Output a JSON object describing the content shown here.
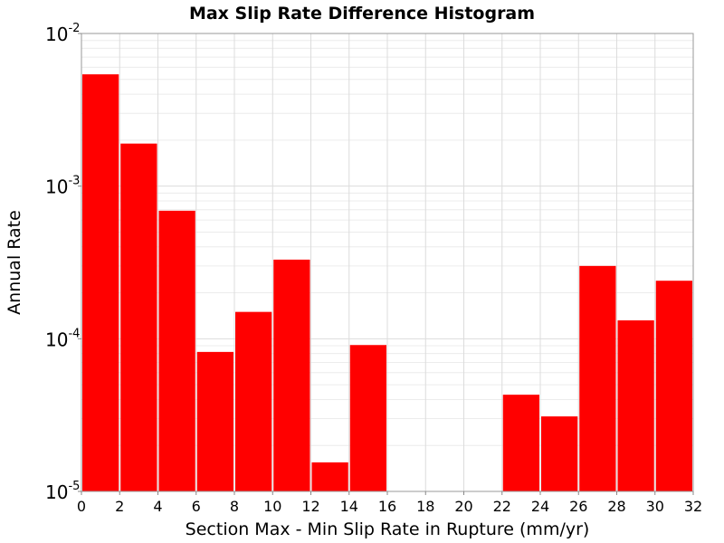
{
  "chart_data": {
    "type": "bar",
    "title": "Max Slip Rate Difference Histogram",
    "xlabel": "Section Max - Min Slip Rate in Rupture (mm/yr)",
    "ylabel": "Annual Rate",
    "xlim": [
      0,
      32
    ],
    "ylim": [
      1e-05,
      0.01
    ],
    "yscale": "log",
    "bin_width": 2,
    "grid": true,
    "bar_color": "#ff0000",
    "x_ticks": [
      "0",
      "2",
      "4",
      "6",
      "8",
      "10",
      "12",
      "14",
      "16",
      "18",
      "20",
      "22",
      "24",
      "26",
      "28",
      "30",
      "32"
    ],
    "y_ticks": [
      {
        "value": 0.01,
        "base": "10",
        "exp": "-2"
      },
      {
        "value": 0.001,
        "base": "10",
        "exp": "-3"
      },
      {
        "value": 0.0001,
        "base": "10",
        "exp": "-4"
      },
      {
        "value": 1e-05,
        "base": "10",
        "exp": "-5"
      }
    ],
    "bins": [
      {
        "x": 1,
        "value": 0.0054
      },
      {
        "x": 3,
        "value": 0.0019
      },
      {
        "x": 5,
        "value": 0.00069
      },
      {
        "x": 7,
        "value": 8.2e-05
      },
      {
        "x": 9,
        "value": 0.00015
      },
      {
        "x": 11,
        "value": 0.00033
      },
      {
        "x": 13,
        "value": 1.55e-05
      },
      {
        "x": 15,
        "value": 9.1e-05
      },
      {
        "x": 23,
        "value": 4.3e-05
      },
      {
        "x": 25,
        "value": 3.1e-05
      },
      {
        "x": 27,
        "value": 0.0003
      },
      {
        "x": 29,
        "value": 0.000132
      },
      {
        "x": 31,
        "value": 0.00024
      }
    ]
  }
}
